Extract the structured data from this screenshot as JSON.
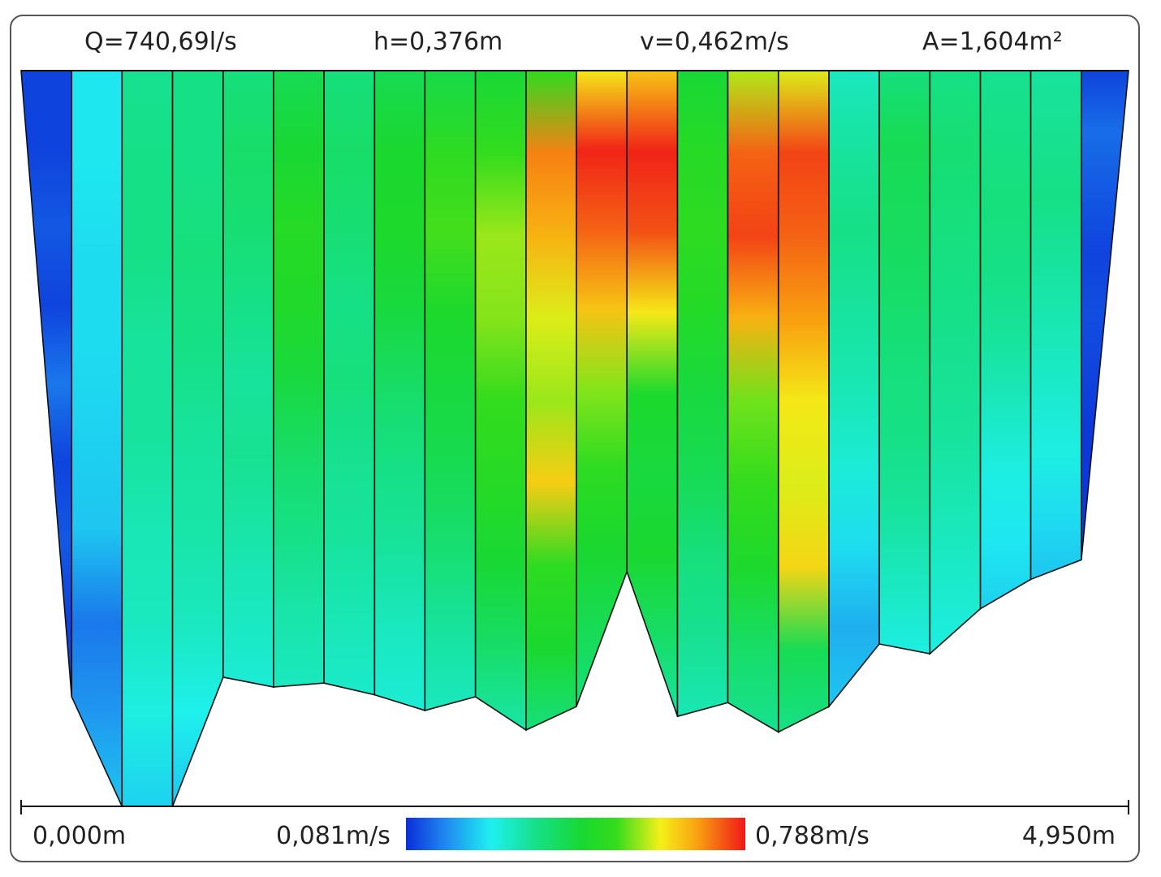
{
  "header": {
    "discharge": "Q=740,69l/s",
    "depth": "h=0,376m",
    "velocity": "v=0,462m/s",
    "area": "A=1,604m²"
  },
  "axis": {
    "x_min_label": "0,000m",
    "x_max_label": "4,950m"
  },
  "colorscale": {
    "min_label": "0,081m/s",
    "max_label": "0,788m/s",
    "min": 0.081,
    "max": 0.788,
    "stops": [
      "#0a2fd8",
      "#1f8cf0",
      "#1ef0f0",
      "#16e08a",
      "#18d830",
      "#34dc1c",
      "#f4f018",
      "#f8a010",
      "#f01818"
    ]
  },
  "chart_data": {
    "type": "heatmap",
    "title": "",
    "xlabel": "",
    "ylabel": "",
    "x_unit": "m",
    "value_unit": "m/s",
    "xlim": [
      0.0,
      4.95
    ],
    "depth_max_m": 0.376,
    "grid": false,
    "legend": "bottom colorbar",
    "series": [
      {
        "x_start": 0.0,
        "x_end": 0.226,
        "depth_left": 0.0,
        "depth_right": 0.32,
        "velocities": [
          0.1,
          0.1,
          0.12,
          0.1,
          0.15,
          0.1,
          0.12,
          0.1,
          0.1
        ]
      },
      {
        "x_start": 0.226,
        "x_end": 0.451,
        "depth_left": 0.32,
        "depth_right": 0.376,
        "velocities": [
          0.25,
          0.25,
          0.24,
          0.24,
          0.23,
          0.22,
          0.15,
          0.18,
          0.22
        ]
      },
      {
        "x_start": 0.451,
        "x_end": 0.677,
        "depth_left": 0.376,
        "depth_right": 0.376,
        "velocities": [
          0.34,
          0.35,
          0.35,
          0.33,
          0.33,
          0.31,
          0.3,
          0.27,
          0.23
        ]
      },
      {
        "x_start": 0.677,
        "x_end": 0.903,
        "depth_left": 0.376,
        "depth_right": 0.31,
        "velocities": [
          0.35,
          0.35,
          0.36,
          0.35,
          0.33,
          0.32,
          0.3,
          0.26,
          0.22
        ]
      },
      {
        "x_start": 0.903,
        "x_end": 1.128,
        "depth_left": 0.31,
        "depth_right": 0.315,
        "velocities": [
          0.36,
          0.38,
          0.37,
          0.35,
          0.33,
          0.34,
          0.32,
          0.3,
          0.28
        ]
      },
      {
        "x_start": 1.128,
        "x_end": 1.354,
        "depth_left": 0.315,
        "depth_right": 0.313,
        "velocities": [
          0.4,
          0.43,
          0.48,
          0.46,
          0.42,
          0.38,
          0.35,
          0.32,
          0.3
        ]
      },
      {
        "x_start": 1.354,
        "x_end": 1.58,
        "depth_left": 0.313,
        "depth_right": 0.319,
        "velocities": [
          0.36,
          0.38,
          0.37,
          0.35,
          0.36,
          0.34,
          0.33,
          0.31,
          0.29
        ]
      },
      {
        "x_start": 1.58,
        "x_end": 1.805,
        "depth_left": 0.319,
        "depth_right": 0.327,
        "velocities": [
          0.4,
          0.44,
          0.45,
          0.42,
          0.38,
          0.35,
          0.33,
          0.3,
          0.28
        ]
      },
      {
        "x_start": 1.805,
        "x_end": 2.031,
        "depth_left": 0.327,
        "depth_right": 0.32,
        "velocities": [
          0.41,
          0.5,
          0.53,
          0.45,
          0.42,
          0.4,
          0.37,
          0.33,
          0.3
        ]
      },
      {
        "x_start": 2.031,
        "x_end": 2.257,
        "depth_left": 0.32,
        "depth_right": 0.337,
        "velocities": [
          0.43,
          0.52,
          0.57,
          0.56,
          0.52,
          0.48,
          0.43,
          0.38,
          0.32
        ]
      },
      {
        "x_start": 2.257,
        "x_end": 2.482,
        "depth_left": 0.337,
        "depth_right": 0.325,
        "velocities": [
          0.51,
          0.72,
          0.68,
          0.6,
          0.57,
          0.65,
          0.5,
          0.44,
          0.36
        ]
      },
      {
        "x_start": 2.482,
        "x_end": 2.708,
        "depth_left": 0.325,
        "depth_right": 0.256,
        "velocities": [
          0.62,
          0.78,
          0.74,
          0.66,
          0.56,
          0.5,
          0.44,
          0.4,
          0.36
        ]
      },
      {
        "x_start": 2.708,
        "x_end": 2.934,
        "depth_left": 0.256,
        "depth_right": 0.33,
        "velocities": [
          0.66,
          0.78,
          0.75,
          0.62,
          0.45,
          0.42,
          0.44,
          0.38,
          0.33
        ]
      },
      {
        "x_start": 2.934,
        "x_end": 3.159,
        "depth_left": 0.33,
        "depth_right": 0.323,
        "velocities": [
          0.43,
          0.48,
          0.5,
          0.47,
          0.42,
          0.4,
          0.36,
          0.34,
          0.31
        ]
      },
      {
        "x_start": 3.159,
        "x_end": 3.385,
        "depth_left": 0.323,
        "depth_right": 0.338,
        "velocities": [
          0.58,
          0.74,
          0.76,
          0.68,
          0.55,
          0.52,
          0.45,
          0.38,
          0.34
        ]
      },
      {
        "x_start": 3.385,
        "x_end": 3.611,
        "depth_left": 0.338,
        "depth_right": 0.325,
        "velocities": [
          0.6,
          0.76,
          0.74,
          0.7,
          0.62,
          0.6,
          0.64,
          0.4,
          0.35
        ]
      },
      {
        "x_start": 3.611,
        "x_end": 3.836,
        "depth_left": 0.325,
        "depth_right": 0.293,
        "velocities": [
          0.3,
          0.33,
          0.35,
          0.33,
          0.31,
          0.28,
          0.24,
          0.2,
          0.22
        ]
      },
      {
        "x_start": 3.836,
        "x_end": 4.062,
        "depth_left": 0.293,
        "depth_right": 0.298,
        "velocities": [
          0.36,
          0.4,
          0.39,
          0.38,
          0.36,
          0.35,
          0.33,
          0.3,
          0.27
        ]
      },
      {
        "x_start": 4.062,
        "x_end": 4.288,
        "depth_left": 0.298,
        "depth_right": 0.275,
        "velocities": [
          0.35,
          0.37,
          0.36,
          0.35,
          0.34,
          0.33,
          0.31,
          0.29,
          0.27
        ]
      },
      {
        "x_start": 4.288,
        "x_end": 4.513,
        "depth_left": 0.275,
        "depth_right": 0.26,
        "velocities": [
          0.34,
          0.35,
          0.36,
          0.35,
          0.33,
          0.3,
          0.27,
          0.25,
          0.23
        ]
      },
      {
        "x_start": 4.513,
        "x_end": 4.739,
        "depth_left": 0.26,
        "depth_right": 0.25,
        "velocities": [
          0.33,
          0.34,
          0.35,
          0.33,
          0.31,
          0.29,
          0.27,
          0.24,
          0.22
        ]
      },
      {
        "x_start": 4.739,
        "x_end": 4.95,
        "depth_left": 0.25,
        "depth_right": 0.0,
        "velocities": [
          0.1,
          0.14,
          0.12,
          0.1,
          0.11,
          0.1,
          0.09,
          0.09,
          0.09
        ]
      }
    ]
  }
}
